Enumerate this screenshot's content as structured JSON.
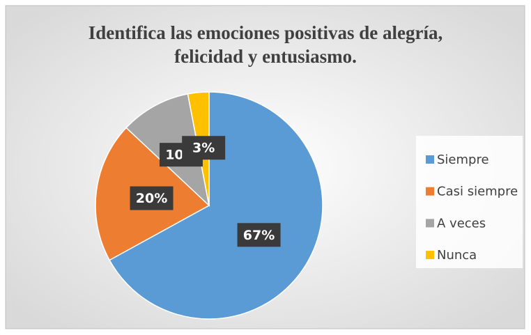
{
  "chart_data": {
    "type": "pie",
    "title": "Identifica las emociones positivas de alegría, felicidad y entusiasmo.",
    "categories": [
      "Siempre",
      "Casi siempre",
      "A veces",
      "Nunca"
    ],
    "values": [
      67,
      20,
      10,
      3
    ],
    "value_labels": [
      "67%",
      "20%",
      "10%",
      "3%"
    ],
    "colors": [
      "#5b9bd5",
      "#ed7d31",
      "#a5a5a5",
      "#ffc000"
    ],
    "legend": "right"
  }
}
